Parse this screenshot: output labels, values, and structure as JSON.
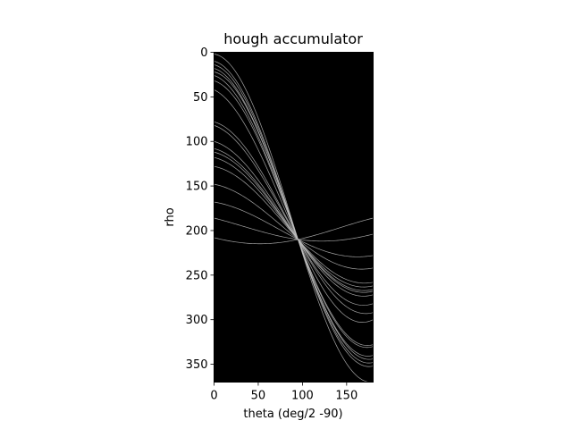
{
  "chart_data": {
    "type": "heatmap",
    "title": "hough accumulator",
    "xlabel": "theta (deg/2 -90)",
    "ylabel": "rho",
    "xlim": [
      0,
      180
    ],
    "ylim": [
      370,
      0
    ],
    "xticks": [
      0,
      50,
      100,
      150
    ],
    "yticks": [
      0,
      50,
      100,
      150,
      200,
      250,
      300,
      350
    ],
    "background_color": "#000000",
    "curve_color": "#bfbfbf",
    "intersection": {
      "theta": 95,
      "rho": 210
    },
    "series": [
      {
        "values": [
          [
            0,
            2
          ],
          [
            180,
            370
          ]
        ]
      },
      {
        "values": [
          [
            0,
            10
          ],
          [
            180,
            352
          ]
        ]
      },
      {
        "values": [
          [
            0,
            14
          ],
          [
            180,
            348
          ]
        ]
      },
      {
        "values": [
          [
            0,
            18
          ],
          [
            180,
            340
          ]
        ]
      },
      {
        "values": [
          [
            0,
            22
          ],
          [
            180,
            344
          ]
        ]
      },
      {
        "values": [
          [
            0,
            26
          ],
          [
            180,
            330
          ]
        ]
      },
      {
        "values": [
          [
            0,
            32
          ],
          [
            180,
            328
          ]
        ]
      },
      {
        "values": [
          [
            0,
            42
          ],
          [
            180,
            300
          ]
        ]
      },
      {
        "values": [
          [
            0,
            78
          ],
          [
            180,
            292
          ]
        ]
      },
      {
        "values": [
          [
            0,
            82
          ],
          [
            180,
            282
          ]
        ]
      },
      {
        "values": [
          [
            0,
            100
          ],
          [
            180,
            272
          ]
        ]
      },
      {
        "values": [
          [
            0,
            108
          ],
          [
            180,
            268
          ]
        ]
      },
      {
        "values": [
          [
            0,
            112
          ],
          [
            180,
            266
          ]
        ]
      },
      {
        "values": [
          [
            0,
            118
          ],
          [
            180,
            262
          ]
        ]
      },
      {
        "values": [
          [
            0,
            128
          ],
          [
            180,
            258
          ]
        ]
      },
      {
        "values": [
          [
            0,
            148
          ],
          [
            180,
            242
          ]
        ]
      },
      {
        "values": [
          [
            0,
            168
          ],
          [
            180,
            228
          ]
        ]
      },
      {
        "values": [
          [
            0,
            186
          ],
          [
            180,
            204
          ]
        ]
      },
      {
        "values": [
          [
            0,
            208
          ],
          [
            180,
            186
          ]
        ]
      }
    ]
  }
}
